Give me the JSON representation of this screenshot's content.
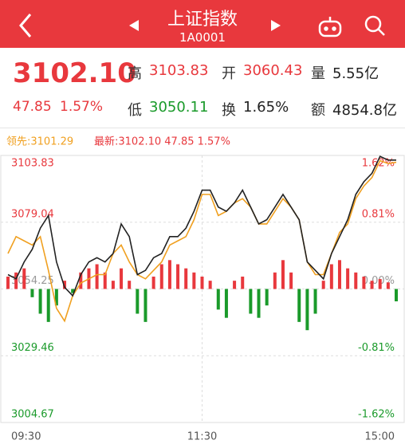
{
  "header": {
    "title": "上证指数",
    "code": "1A0001"
  },
  "quote": {
    "price": "3102.10",
    "change": "47.85",
    "change_pct": "1.57%",
    "fields": [
      {
        "label": "高",
        "value": "3103.83"
      },
      {
        "label": "开",
        "value": "3060.43"
      },
      {
        "label": "量",
        "value": "5.55亿"
      },
      {
        "label": "低",
        "value": "3050.11"
      },
      {
        "label": "换",
        "value": "1.65%"
      },
      {
        "label": "额",
        "value": "4854.8亿"
      }
    ]
  },
  "chart_data": {
    "type": "line",
    "categories": [
      "09:30",
      null,
      null,
      null,
      null,
      null,
      null,
      null,
      null,
      null,
      null,
      null,
      null,
      null,
      null,
      null,
      null,
      null,
      null,
      null,
      null,
      null,
      null,
      null,
      "11:30",
      null,
      null,
      null,
      null,
      null,
      null,
      null,
      null,
      null,
      null,
      null,
      null,
      null,
      null,
      null,
      null,
      null,
      null,
      null,
      null,
      null,
      null,
      null,
      "15:00"
    ],
    "ylim": [
      3004.67,
      3103.83
    ],
    "yticks": [
      3004.67,
      3029.46,
      3054.25,
      3079.04,
      3103.83
    ],
    "y2lim": [
      -1.62,
      1.62
    ],
    "y2ticks": [
      {
        "value": -1.62,
        "label": "-1.62%"
      },
      {
        "value": -0.81,
        "label": "-0.81%"
      },
      {
        "value": 0,
        "label": "0.00%"
      },
      {
        "value": 0.81,
        "label": "0.81%"
      },
      {
        "value": 1.62,
        "label": "1.62%"
      }
    ],
    "up_color": "#e8383d",
    "down_color": "#1a9a2a",
    "series": [
      {
        "name": "领先:3101.29",
        "color": "#f0a020",
        "values": [
          3067.42,
          3073.69,
          3072.12,
          3070.55,
          3073.69,
          3061.15,
          3047.04,
          3042.34,
          3051.74,
          3056.44,
          3058.01,
          3059.58,
          3059.58,
          3067.42,
          3070.55,
          3064.28,
          3059.58,
          3058.01,
          3061.15,
          3064.28,
          3070.55,
          3072.12,
          3073.69,
          3079.96,
          3089.36,
          3089.36,
          3081.52,
          3083.09,
          3086.22,
          3087.79,
          3084.66,
          3078.39,
          3078.39,
          3083.09,
          3087.79,
          3084.66,
          3079.96,
          3064.28,
          3059.58,
          3059.58,
          3067.42,
          3075.26,
          3078.39,
          3087.79,
          3092.49,
          3095.63,
          3101.9,
          3100.8,
          3101.29
        ]
      },
      {
        "name": "最新:3102.10 47.85 1.57%",
        "color": "#222222",
        "values": [
          3059.58,
          3058.01,
          3064.28,
          3068.98,
          3076.82,
          3081.52,
          3064.28,
          3054.88,
          3051.74,
          3059.58,
          3064.28,
          3065.85,
          3064.28,
          3067.42,
          3078.39,
          3073.69,
          3059.58,
          3061.15,
          3065.85,
          3067.42,
          3073.69,
          3073.69,
          3076.82,
          3083.09,
          3090.93,
          3090.93,
          3084.66,
          3083.09,
          3086.22,
          3090.93,
          3084.66,
          3078.39,
          3079.96,
          3084.66,
          3089.36,
          3084.66,
          3079.96,
          3064.28,
          3061.15,
          3058.01,
          3067.42,
          3073.69,
          3079.96,
          3089.36,
          3094.06,
          3097.2,
          3103.47,
          3102.1,
          3102.1
        ]
      },
      {
        "type": "bar",
        "axis": "y2",
        "values": [
          0.15,
          0.2,
          0.25,
          -0.1,
          -0.3,
          -0.4,
          -0.2,
          0.1,
          -0.05,
          0.2,
          0.25,
          0.3,
          0.2,
          0.1,
          0.25,
          0.1,
          -0.3,
          -0.4,
          0.15,
          0.3,
          0.35,
          0.3,
          0.25,
          0.2,
          0.15,
          0.1,
          -0.25,
          -0.35,
          0.1,
          0.15,
          -0.3,
          -0.35,
          -0.2,
          0.2,
          0.35,
          0.2,
          -0.4,
          -0.5,
          -0.3,
          0.1,
          0.3,
          0.35,
          0.25,
          0.2,
          0.15,
          0.1,
          0.12,
          0.08,
          -0.15
        ]
      }
    ]
  }
}
